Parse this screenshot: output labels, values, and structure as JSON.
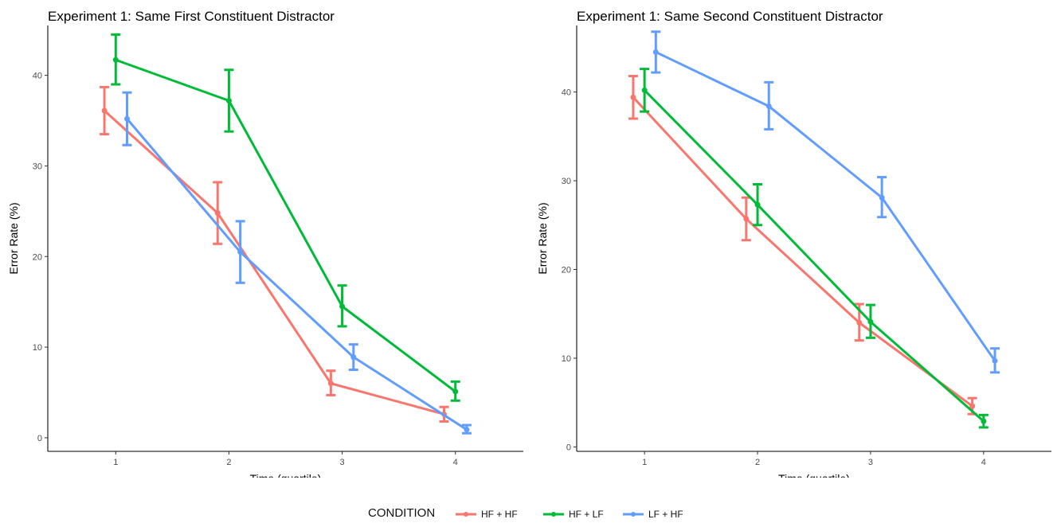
{
  "chart_data": [
    {
      "type": "line",
      "title": "Experiment 1: Same First Constituent Distractor",
      "xlabel": "Time (quartile)",
      "ylabel": "Error Rate (%)",
      "categories": [
        "1",
        "2",
        "3",
        "4"
      ],
      "yticks": [
        "0",
        "10",
        "20",
        "30",
        "40"
      ],
      "ylim": [
        -1.5,
        45.5
      ],
      "xlim": [
        0.4,
        4.6
      ],
      "grid": false,
      "error_bars": true,
      "series": [
        {
          "name": "HF + HF",
          "color": "#F8766D",
          "x_offset": -0.1,
          "values": [
            36.1,
            24.8,
            6.0,
            2.6
          ],
          "lower": [
            33.5,
            21.4,
            4.7,
            1.8
          ],
          "upper": [
            38.7,
            28.2,
            7.4,
            3.4
          ]
        },
        {
          "name": "HF + LF",
          "color": "#00BA38",
          "x_offset": 0.0,
          "values": [
            41.7,
            37.2,
            14.5,
            5.1
          ],
          "lower": [
            39.0,
            33.8,
            12.3,
            4.1
          ],
          "upper": [
            44.5,
            40.6,
            16.8,
            6.2
          ]
        },
        {
          "name": "LF + HF",
          "color": "#619CFF",
          "x_offset": 0.1,
          "values": [
            35.2,
            20.5,
            8.9,
            0.9
          ],
          "lower": [
            32.3,
            17.1,
            7.5,
            0.5
          ],
          "upper": [
            38.1,
            23.9,
            10.3,
            1.4
          ]
        }
      ]
    },
    {
      "type": "line",
      "title": "Experiment 1: Same Second Constituent Distractor",
      "xlabel": "Time (quartile)",
      "ylabel": "Error Rate (%)",
      "categories": [
        "1",
        "2",
        "3",
        "4"
      ],
      "yticks": [
        "0",
        "10",
        "20",
        "30",
        "40"
      ],
      "ylim": [
        -0.5,
        47.5
      ],
      "xlim": [
        0.4,
        4.6
      ],
      "grid": false,
      "error_bars": true,
      "series": [
        {
          "name": "HF + HF",
          "color": "#F8766D",
          "x_offset": -0.1,
          "values": [
            39.4,
            25.7,
            14.0,
            4.6
          ],
          "lower": [
            37.0,
            23.3,
            12.0,
            3.7
          ],
          "upper": [
            41.8,
            28.1,
            16.1,
            5.5
          ]
        },
        {
          "name": "HF + LF",
          "color": "#00BA38",
          "x_offset": 0.0,
          "values": [
            40.2,
            27.3,
            14.1,
            2.9
          ],
          "lower": [
            37.8,
            25.0,
            12.3,
            2.2
          ],
          "upper": [
            42.6,
            29.6,
            16.0,
            3.6
          ]
        },
        {
          "name": "LF + HF",
          "color": "#619CFF",
          "x_offset": 0.1,
          "values": [
            44.5,
            38.4,
            28.1,
            9.7
          ],
          "lower": [
            42.2,
            35.8,
            25.9,
            8.4
          ],
          "upper": [
            46.8,
            41.1,
            30.4,
            11.1
          ]
        }
      ]
    }
  ],
  "legend": {
    "title": "CONDITION",
    "placement": "bottom",
    "items": [
      {
        "label": "HF + HF",
        "color": "#F8766D"
      },
      {
        "label": "HF + LF",
        "color": "#00BA38"
      },
      {
        "label": "LF + HF",
        "color": "#619CFF"
      }
    ]
  }
}
